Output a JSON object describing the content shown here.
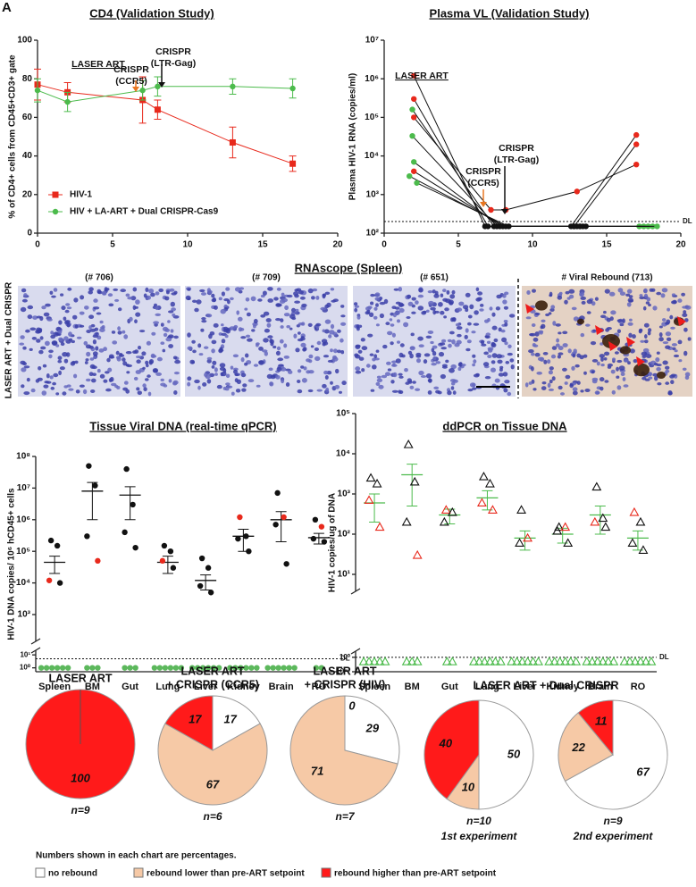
{
  "panel_label": "A",
  "chart_data": [
    {
      "type": "line",
      "title": "CD4 (Validation Study)",
      "ylabel": "% of CD4+ cells from CD45+CD3+ gate",
      "xlim": [
        0,
        20
      ],
      "xticks": [
        0,
        5,
        10,
        15,
        20
      ],
      "ylim": [
        0,
        100
      ],
      "yticks": [
        0,
        20,
        40,
        60,
        80,
        100
      ],
      "series": [
        {
          "name": "HIV-1",
          "color": "#e8291c",
          "marker": "square",
          "x": [
            0,
            2,
            7,
            8,
            13,
            17
          ],
          "values": [
            77,
            73,
            69,
            64,
            47,
            36
          ],
          "errors": [
            8,
            5,
            12,
            5,
            8,
            4
          ]
        },
        {
          "name": "HIV + LA-ART + Dual CRISPR-Cas9",
          "color": "#4cbb4c",
          "marker": "circle",
          "x": [
            0,
            2,
            7,
            8,
            13,
            17
          ],
          "values": [
            74,
            68,
            74,
            76,
            76,
            75
          ],
          "errors": [
            6,
            5,
            5,
            5,
            4,
            5
          ]
        }
      ],
      "annotations": [
        {
          "text": [
            "LASER ART"
          ],
          "color": "#2a2ad0"
        },
        {
          "text": [
            "CRISPR",
            "(CCR5)"
          ],
          "color": "#e87722"
        },
        {
          "text": [
            "CRISPR",
            "(LTR-Gag)"
          ],
          "color": "#111111"
        }
      ]
    },
    {
      "type": "line",
      "title": "Plasma VL (Validation Study)",
      "ylabel": "Plasma HIV-1 RNA (copies/ml)",
      "log": true,
      "xlim": [
        0,
        20
      ],
      "xticks": [
        0,
        5,
        10,
        15,
        20
      ],
      "ylim": [
        100,
        10000000
      ],
      "yticks": [
        {
          "value": 100,
          "label": "10²"
        },
        {
          "value": 1000,
          "label": "10³"
        },
        {
          "value": 10000,
          "label": "10⁴"
        },
        {
          "value": 100000,
          "label": "10⁵"
        },
        {
          "value": 1000000,
          "label": "10⁶"
        },
        {
          "value": 10000000,
          "label": "10⁷"
        }
      ],
      "dl": 200,
      "dl_label": "DL",
      "series": [
        {
          "color": "#111111",
          "marker": "circle",
          "x": [
            2,
            6.8,
            12.6,
            17
          ],
          "values": [
            1200000,
            150,
            150,
            35000
          ],
          "marker_colors": [
            "#e8291c",
            "#111111",
            "#111111",
            "#e8291c"
          ]
        },
        {
          "color": "#111111",
          "marker": "circle",
          "x": [
            2,
            7.0,
            12.8,
            17
          ],
          "values": [
            300000,
            150,
            150,
            20000
          ],
          "marker_colors": [
            "#e8291c",
            "#111111",
            "#111111",
            "#e8291c"
          ]
        },
        {
          "color": "#111111",
          "marker": "circle",
          "x": [
            2,
            7.2,
            8.2,
            13,
            17
          ],
          "values": [
            100000,
            400,
            400,
            1200,
            6000
          ],
          "marker_colors": [
            "#e8291c",
            "#e8291c",
            "#e8291c",
            "#e8291c",
            "#e8291c"
          ]
        },
        {
          "color": "#111111",
          "marker": "circle",
          "x": [
            1.9,
            7.4,
            13.2,
            17.2
          ],
          "values": [
            160000,
            150,
            150,
            150
          ],
          "marker_colors": [
            "#4cbb4c",
            "#111111",
            "#111111",
            "#4cbb4c"
          ]
        },
        {
          "color": "#111111",
          "marker": "circle",
          "x": [
            1.9,
            7.6,
            13.4,
            17.5
          ],
          "values": [
            33000,
            150,
            150,
            150
          ],
          "marker_colors": [
            "#4cbb4c",
            "#111111",
            "#111111",
            "#4cbb4c"
          ]
        },
        {
          "color": "#111111",
          "marker": "circle",
          "x": [
            2,
            7.8,
            13.6,
            17.8
          ],
          "values": [
            7000,
            150,
            150,
            150
          ],
          "marker_colors": [
            "#4cbb4c",
            "#111111",
            "#111111",
            "#4cbb4c"
          ]
        },
        {
          "color": "#111111",
          "marker": "circle",
          "x": [
            2,
            8.0,
            13.0
          ],
          "values": [
            4000,
            150,
            150
          ],
          "marker_colors": [
            "#e8291c",
            "#111111",
            "#111111"
          ]
        },
        {
          "color": "#111111",
          "marker": "circle",
          "x": [
            1.7,
            8.2,
            12.8,
            18.1
          ],
          "values": [
            3000,
            150,
            150,
            150
          ],
          "marker_colors": [
            "#4cbb4c",
            "#111111",
            "#111111",
            "#4cbb4c"
          ]
        },
        {
          "color": "#111111",
          "marker": "circle",
          "x": [
            2.2,
            8.4,
            13.2,
            18.4
          ],
          "values": [
            2000,
            150,
            150,
            150
          ],
          "marker_colors": [
            "#4cbb4c",
            "#111111",
            "#111111",
            "#4cbb4c"
          ]
        }
      ],
      "annotations": [
        {
          "text": [
            "LASER ART"
          ],
          "color": "#2a2ad0"
        },
        {
          "text": [
            "CRISPR",
            "(CCR5)"
          ],
          "color": "#e87722"
        },
        {
          "text": [
            "CRISPR",
            "(LTR-Gag)"
          ],
          "color": "#111111"
        }
      ]
    },
    {
      "type": "dot",
      "title": "Tissue Viral DNA (real-time qPCR)",
      "ylabel": "HIV-1 DNA copies/ 10⁶ hCD45+ cells",
      "log": true,
      "marker": "circle",
      "categories": [
        "Spleen",
        "BM",
        "Gut",
        "Lung",
        "Liver",
        "Kidney",
        "Brain",
        "RO"
      ],
      "ylim": [
        1000,
        100000000
      ],
      "yticks": [
        {
          "value": 1000,
          "label": "10³"
        },
        {
          "value": 10000,
          "label": "10⁴"
        },
        {
          "value": 100000,
          "label": "10⁵"
        },
        {
          "value": 1000000,
          "label": "10⁶"
        },
        {
          "value": 10000000,
          "label": "10⁷"
        },
        {
          "value": 100000000,
          "label": "10⁸"
        }
      ],
      "lower_ylim": [
        0.5,
        12
      ],
      "lower_yticks": [
        {
          "value": 1,
          "label": "10⁰"
        },
        {
          "value": 10,
          "label": "10¹"
        }
      ],
      "dl": 5,
      "dl_label": "DL",
      "undetected_color": "#5cb85c",
      "mean_color": "#111111",
      "groups": [
        {
          "values": [
            220000,
            150000,
            12000,
            10000
          ],
          "colors": [
            "#111111",
            "#111111",
            "#e8291c",
            "#111111"
          ],
          "undetected": [
            1,
            1,
            1,
            1,
            1,
            1
          ],
          "mean": 45000,
          "sem": 25000
        },
        {
          "values": [
            50000000,
            12000000,
            300000,
            50000
          ],
          "colors": [
            "#111111",
            "#111111",
            "#111111",
            "#e8291c"
          ],
          "undetected": [
            1,
            1,
            1
          ],
          "mean": 8000000,
          "sem": 7000000
        },
        {
          "values": [
            40000000,
            3000000,
            400000,
            130000
          ],
          "colors": [
            "#111111",
            "#111111",
            "#111111",
            "#111111"
          ],
          "undetected": [
            1,
            1,
            1
          ],
          "mean": 6000000,
          "sem": 5000000
        },
        {
          "values": [
            150000,
            100000,
            50000,
            30000
          ],
          "colors": [
            "#111111",
            "#111111",
            "#e8291c",
            "#111111"
          ],
          "undetected": [
            1,
            1,
            1,
            1,
            1,
            1
          ],
          "mean": 45000,
          "sem": 25000
        },
        {
          "values": [
            60000,
            30000,
            8000,
            5000
          ],
          "colors": [
            "#111111",
            "#111111",
            "#111111",
            "#111111"
          ],
          "undetected": [
            1,
            1,
            1,
            1,
            1,
            1
          ],
          "mean": 12000,
          "sem": 6000
        },
        {
          "values": [
            1200000,
            300000,
            250000,
            100000
          ],
          "colors": [
            "#e8291c",
            "#111111",
            "#111111",
            "#111111"
          ],
          "undetected": [
            1,
            1,
            1,
            1,
            1,
            1
          ],
          "mean": 300000,
          "sem": 200000
        },
        {
          "values": [
            7000000,
            1200000,
            700000,
            40000
          ],
          "colors": [
            "#111111",
            "#e8291c",
            "#111111",
            "#111111"
          ],
          "undetected": [
            1,
            1,
            1,
            1,
            1,
            1
          ],
          "mean": 1000000,
          "sem": 800000
        },
        {
          "values": [
            1000000,
            600000,
            250000,
            200000
          ],
          "colors": [
            "#111111",
            "#e8291c",
            "#111111",
            "#111111"
          ],
          "undetected": [
            1,
            1
          ],
          "mean": 270000,
          "sem": 100000
        }
      ]
    },
    {
      "type": "dot",
      "title": "ddPCR on Tissue DNA",
      "ylabel": "HIV-1 copies/ug of DNA",
      "log": true,
      "marker": "triangle",
      "categories": [
        "Spleen",
        "BM",
        "Gut",
        "Lung",
        "Liver",
        "Kidney",
        "Brain",
        "RO"
      ],
      "ylim": [
        10,
        100000
      ],
      "yticks": [
        {
          "value": 10,
          "label": "10¹"
        },
        {
          "value": 100,
          "label": "10²"
        },
        {
          "value": 1000,
          "label": "10³"
        },
        {
          "value": 10000,
          "label": "10⁴"
        },
        {
          "value": 100000,
          "label": "10⁵"
        }
      ],
      "lower_ylim": [
        0.1,
        1.5
      ],
      "lower_yticks": [
        {
          "value": 0.1,
          "label": "10⁻¹"
        },
        {
          "value": 1,
          "label": "10⁰"
        }
      ],
      "dl": 1,
      "dl_label": "DL",
      "undetected_color": "#4cbb4c",
      "mean_color": "#4cbb4c",
      "groups": [
        {
          "values": [
            2500,
            1800,
            700,
            150
          ],
          "colors": [
            "#111111",
            "#111111",
            "#e8291c",
            "#e8291c"
          ],
          "undetected": [
            0.5,
            0.5,
            0.5,
            0.5,
            0.5
          ],
          "mean": 600,
          "sem": 400
        },
        {
          "values": [
            17000,
            2000,
            200,
            30
          ],
          "colors": [
            "#111111",
            "#111111",
            "#111111",
            "#e8291c"
          ],
          "undetected": [
            0.5,
            0.5,
            0.5
          ],
          "mean": 3000,
          "sem": 2500
        },
        {
          "values": [
            400,
            350,
            200
          ],
          "colors": [
            "#e8291c",
            "#111111",
            "#111111"
          ],
          "undetected": [
            0.5,
            0.5
          ],
          "mean": 300,
          "sem": 120
        },
        {
          "values": [
            2700,
            1800,
            600,
            400
          ],
          "colors": [
            "#111111",
            "#111111",
            "#e8291c",
            "#e8291c"
          ],
          "undetected": [
            0.5,
            0.5,
            0.5,
            0.5,
            0.5,
            0.5
          ],
          "mean": 800,
          "sem": 400
        },
        {
          "values": [
            400,
            80,
            60
          ],
          "colors": [
            "#111111",
            "#e8291c",
            "#111111"
          ],
          "undetected": [
            0.5,
            0.5,
            0.5,
            0.5,
            0.5,
            0.5
          ],
          "mean": 80,
          "sem": 40
        },
        {
          "values": [
            150,
            150,
            120,
            60
          ],
          "colors": [
            "#111111",
            "#e8291c",
            "#111111",
            "#111111"
          ],
          "undetected": [
            0.5,
            0.5,
            0.5,
            0.5,
            0.5,
            0.5
          ],
          "mean": 100,
          "sem": 40
        },
        {
          "values": [
            1500,
            250,
            200,
            150
          ],
          "colors": [
            "#111111",
            "#111111",
            "#e8291c",
            "#111111"
          ],
          "undetected": [
            0.5,
            0.5,
            0.5,
            0.5,
            0.5,
            0.5
          ],
          "mean": 300,
          "sem": 200
        },
        {
          "values": [
            350,
            200,
            60,
            40
          ],
          "colors": [
            "#e8291c",
            "#111111",
            "#111111",
            "#111111"
          ],
          "undetected": [
            0.5,
            0.5,
            0.5,
            0.5,
            0.5,
            0.5
          ],
          "mean": 80,
          "sem": 40
        }
      ]
    },
    {
      "type": "pie",
      "title": [
        "LASER ART"
      ],
      "values": [
        0,
        0,
        100
      ],
      "n": "n=9"
    },
    {
      "type": "pie",
      "title": [
        "LASER ART",
        "+ CRISPR (CCR5)"
      ],
      "values": [
        17,
        67,
        17
      ],
      "n": "n=6"
    },
    {
      "type": "pie",
      "title": [
        "LASER ART",
        "+ CRISPR (HIV)"
      ],
      "values": [
        29,
        71,
        0
      ],
      "n": "n=7"
    },
    {
      "type": "pie",
      "values": [
        50,
        10,
        40
      ],
      "n": "n=10",
      "subtitle": "1st experiment"
    },
    {
      "type": "pie",
      "values": [
        67,
        22,
        11
      ],
      "n": "n=9",
      "subtitle": "2nd experiment"
    }
  ],
  "pie_group_title": "LASER ART + Dual CRISPR",
  "pie_legend": {
    "note": "Numbers shown in each chart are percentages.",
    "items": [
      {
        "label": "no rebound",
        "color": "#ffffff"
      },
      {
        "label": "rebound lower than pre-ART setpoint",
        "color": "#f6c9a6"
      },
      {
        "label": "rebound higher than pre-ART setpoint",
        "color": "#ff1a1a"
      }
    ]
  },
  "rnascope": {
    "title": "RNAscope (Spleen)",
    "row_label": "LASER ART + Dual CRISPR",
    "panels": [
      "(# 706)",
      "(# 709)",
      "(# 651)",
      "# Viral Rebound (713)"
    ]
  }
}
